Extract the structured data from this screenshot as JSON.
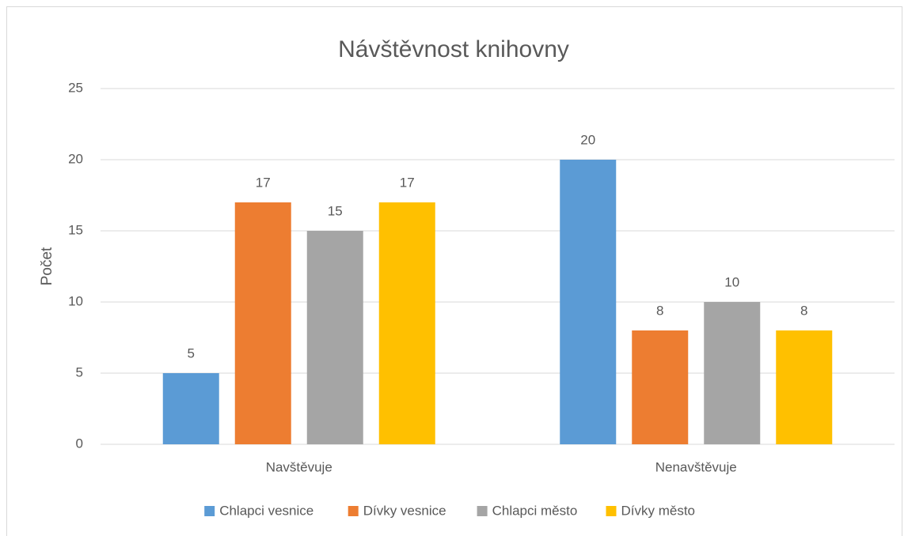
{
  "chart_data": {
    "type": "bar",
    "title": "Návštěvnost knihovny",
    "y_label": "Počet",
    "categories": [
      "Navštěvuje",
      "Nenavštěvuje"
    ],
    "series": [
      {
        "name": "Chlapci vesnice",
        "color": "#5b9bd5",
        "values": [
          5,
          20
        ]
      },
      {
        "name": "Dívky vesnice",
        "color": "#ed7d31",
        "values": [
          17,
          8
        ]
      },
      {
        "name": "Chlapci město",
        "color": "#a5a5a5",
        "values": [
          15,
          10
        ]
      },
      {
        "name": "Dívky město",
        "color": "#ffc000",
        "values": [
          17,
          8
        ]
      }
    ],
    "ylim": [
      0,
      25
    ],
    "yticks": [
      0,
      5,
      10,
      15,
      20,
      25
    ],
    "grid": true,
    "legend": "bottom"
  }
}
